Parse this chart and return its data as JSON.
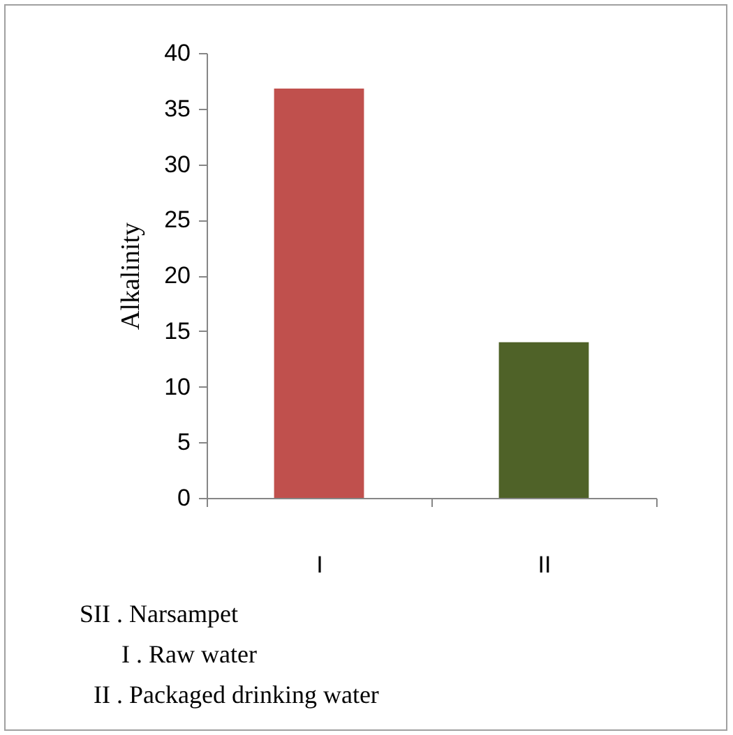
{
  "chart_data": {
    "type": "bar",
    "ylabel": "Alkalinity",
    "categories": [
      "I",
      "II"
    ],
    "values": [
      36.8,
      14
    ],
    "colors": [
      "#c0504d",
      "#4f6228"
    ],
    "ylim": [
      0,
      40
    ],
    "yticks": [
      0,
      5,
      10,
      15,
      20,
      25,
      30,
      35,
      40
    ],
    "grid": false,
    "legend": false,
    "annotations": [
      "SII . Narsampet",
      "I . Raw water",
      "II . Packaged drinking water"
    ]
  }
}
